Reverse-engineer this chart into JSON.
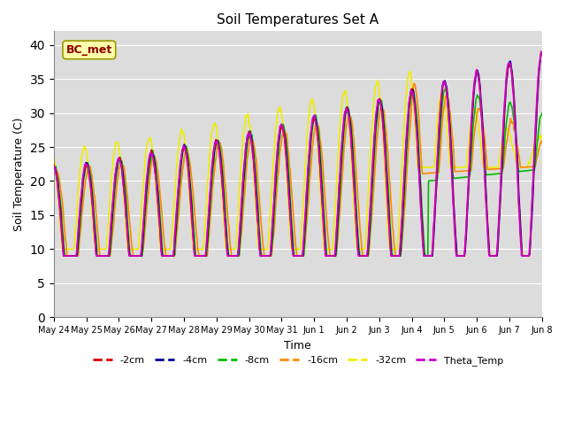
{
  "title": "Soil Temperatures Set A",
  "xlabel": "Time",
  "ylabel": "Soil Temperature (C)",
  "ylim": [
    0,
    42
  ],
  "yticks": [
    0,
    5,
    10,
    15,
    20,
    25,
    30,
    35,
    40
  ],
  "bg_color": "#dcdcdc",
  "annotation_text": "BC_met",
  "annotation_color": "#8b0000",
  "annotation_bg": "#ffffaa",
  "annotation_edge": "#999900",
  "lines": {
    "-2cm": {
      "color": "#dd0000",
      "lw": 1.2,
      "zorder": 5
    },
    "-4cm": {
      "color": "#000099",
      "lw": 1.2,
      "zorder": 4
    },
    "-8cm": {
      "color": "#00bb00",
      "lw": 1.2,
      "zorder": 3
    },
    "-16cm": {
      "color": "#ff8800",
      "lw": 1.2,
      "zorder": 2
    },
    "-32cm": {
      "color": "#eeee00",
      "lw": 1.2,
      "zorder": 1
    },
    "Theta_Temp": {
      "color": "#cc00cc",
      "lw": 1.2,
      "zorder": 6
    }
  },
  "date_labels": [
    "May 24",
    "May 25",
    "May 26",
    "May 27",
    "May 28",
    "May 29",
    "May 30",
    "May 31",
    "Jun 1",
    "Jun 2",
    "Jun 3",
    "Jun 4",
    "Jun 5",
    "Jun 6",
    "Jun 7",
    "Jun 8"
  ],
  "n_days": 15,
  "pts_per_day": 48
}
